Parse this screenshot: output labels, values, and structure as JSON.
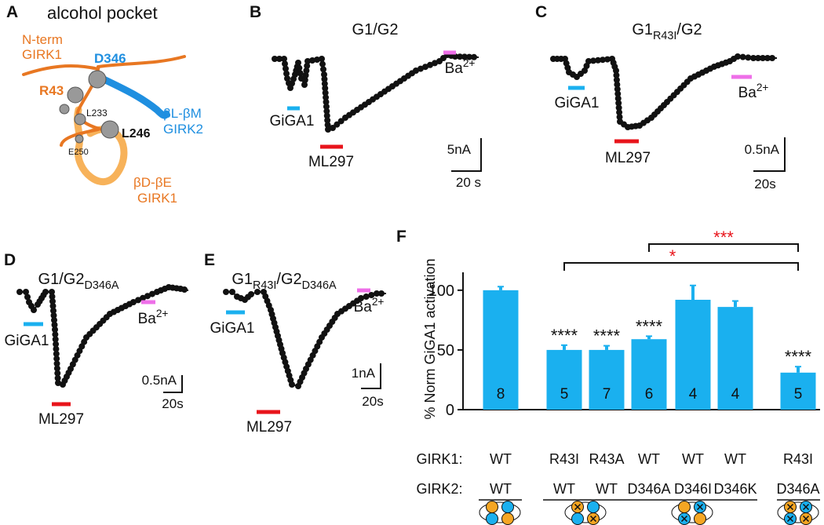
{
  "panel_labels": [
    "A",
    "B",
    "C",
    "D",
    "E",
    "F"
  ],
  "panel_a": {
    "title": "alcohol pocket",
    "n_term": [
      "N-term",
      "GIRK1"
    ],
    "residues": [
      "D346",
      "R43",
      "L233",
      "L246",
      "E250"
    ],
    "bl_bm": [
      "βL-βM",
      "GIRK2"
    ],
    "bd_be": [
      "βD-βE",
      "GIRK1"
    ]
  },
  "traces": [
    {
      "title_parts": [
        {
          "text": "G1/G2"
        }
      ],
      "stimuli": [
        "GiGA1",
        "ML297"
      ],
      "ba": [
        {
          "text": "Ba"
        },
        {
          "text": "2+",
          "sup": true
        }
      ],
      "scale": [
        "5nA",
        "20 s"
      ]
    },
    {
      "title_parts": [
        {
          "text": "G1"
        },
        {
          "text": "R43I",
          "sub": true
        },
        {
          "text": "/G2"
        }
      ],
      "stimuli": [
        "GiGA1",
        "ML297"
      ],
      "ba": [
        {
          "text": "Ba"
        },
        {
          "text": "2+",
          "sup": true
        }
      ],
      "scale": [
        "0.5nA",
        "20s"
      ]
    },
    {
      "title_parts": [
        {
          "text": "G1/G2"
        },
        {
          "text": "D346A",
          "sub": true
        }
      ],
      "stimuli": [
        "GiGA1",
        "ML297"
      ],
      "ba": [
        {
          "text": "Ba"
        },
        {
          "text": "2+",
          "sup": true
        }
      ],
      "scale": [
        "0.5nA",
        "20s"
      ]
    },
    {
      "title_parts": [
        {
          "text": "G1"
        },
        {
          "text": "R43I",
          "sub": true
        },
        {
          "text": "/G2"
        },
        {
          "text": "D346A",
          "sub": true
        }
      ],
      "stimuli": [
        "GiGA1",
        "ML297"
      ],
      "ba": [
        {
          "text": "Ba"
        },
        {
          "text": "2+",
          "sup": true
        }
      ],
      "scale": [
        "1nA",
        "20s"
      ]
    }
  ],
  "chart_data": {
    "type": "bar",
    "ylabel": "% Norm GiGA1 activation",
    "row_labels": [
      "GIRK1:",
      "GIRK2:"
    ],
    "categories": [
      "WT",
      "R43I",
      "R43A",
      "WT",
      "WT",
      "WT",
      "R43I"
    ],
    "girk2": [
      "WT",
      "WT",
      "WT",
      "D346A",
      "D346I",
      "D346K",
      "D346A"
    ],
    "values": [
      100,
      50,
      50,
      59,
      92,
      86,
      31
    ],
    "errors": [
      3,
      4,
      3.5,
      2.5,
      12,
      5,
      5
    ],
    "n": [
      8,
      5,
      7,
      6,
      4,
      4,
      5
    ],
    "significance": [
      null,
      "****",
      "****",
      "****",
      null,
      null,
      "****"
    ],
    "comparisons": [
      "*",
      "***"
    ],
    "color": "#1ab0ef",
    "ylim": [
      0,
      115
    ],
    "yticks": [
      0,
      50,
      100
    ]
  }
}
